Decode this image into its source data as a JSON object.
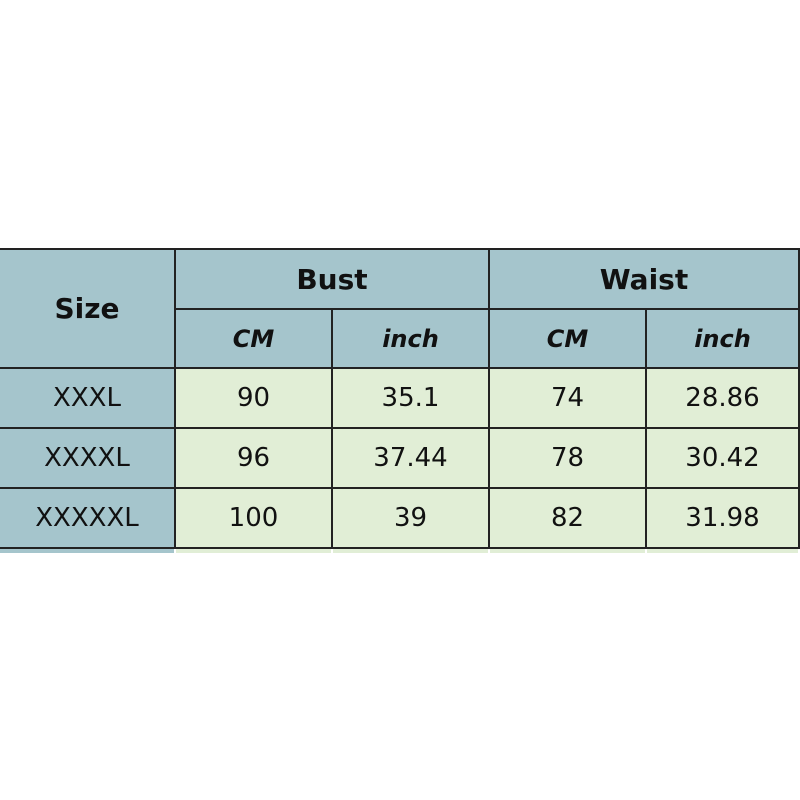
{
  "table": {
    "size_header": "Size",
    "groups": [
      "Bust",
      "Waist"
    ],
    "units": [
      "CM",
      "inch",
      "CM",
      "inch"
    ],
    "rows": [
      {
        "size": "XXXL",
        "values": [
          "90",
          "35.1",
          "74",
          "28.86"
        ]
      },
      {
        "size": "XXXXL",
        "values": [
          "96",
          "37.44",
          "78",
          "30.42"
        ]
      },
      {
        "size": "XXXXXL",
        "values": [
          "100",
          "39",
          "82",
          "31.98"
        ]
      }
    ],
    "colors": {
      "header": "#a5c5cc",
      "cell": "#e1eed6",
      "border": "#222222"
    }
  }
}
